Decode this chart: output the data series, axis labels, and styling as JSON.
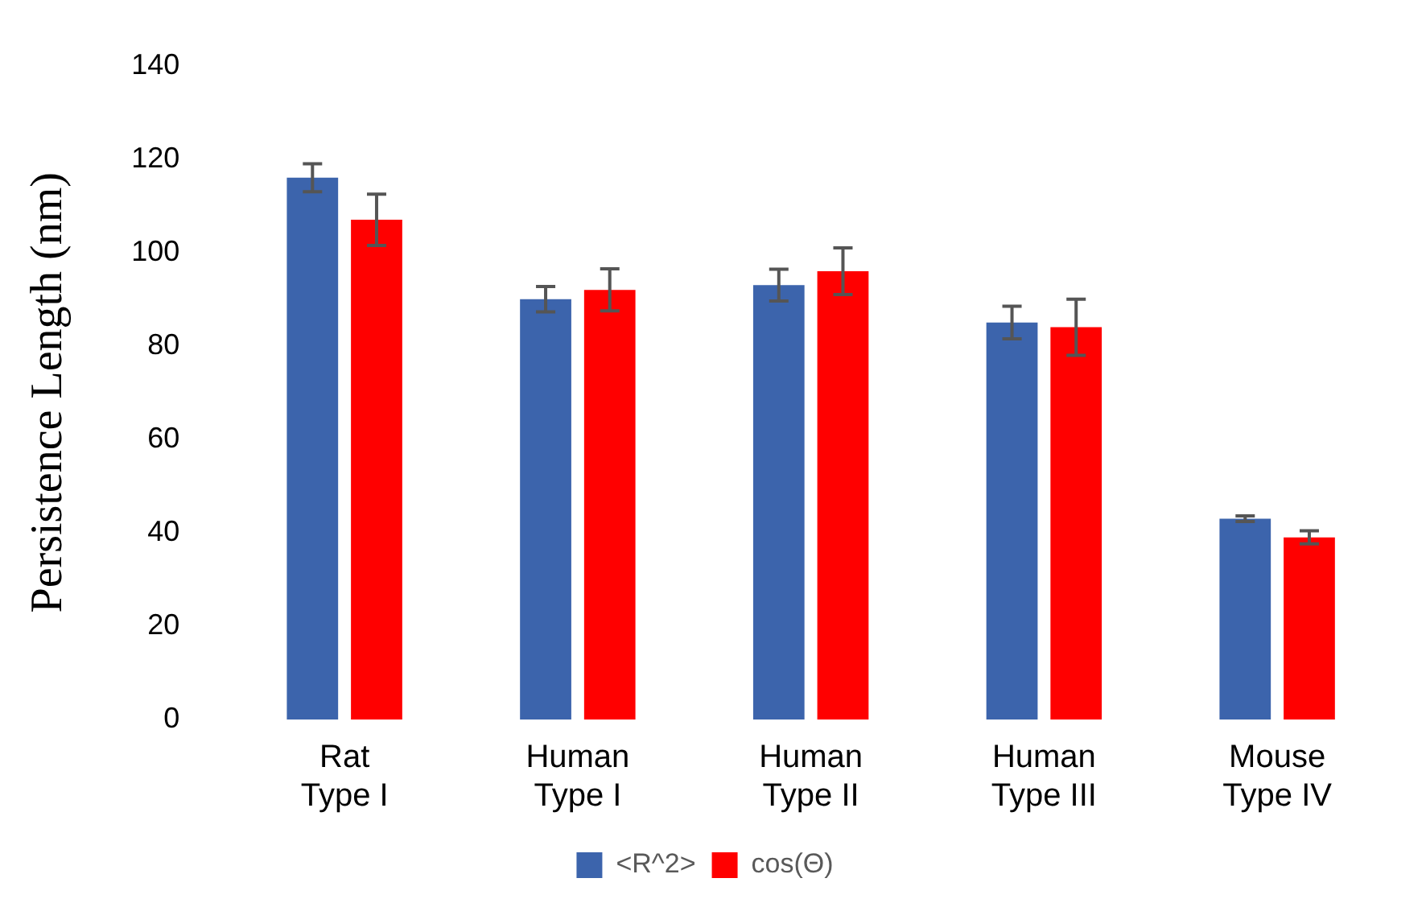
{
  "chart_data": {
    "type": "bar",
    "ylabel": "Persistence Length (nm)",
    "categories": [
      "Rat\nType I",
      "Human\nType I",
      "Human\nType II",
      "Human\nType III",
      "Mouse\nType IV"
    ],
    "series": [
      {
        "name": "<R^2>",
        "color": "#3c64ac",
        "values": [
          116,
          90,
          93,
          85,
          43
        ],
        "errors": [
          3,
          2.7,
          3.4,
          3.5,
          0.6
        ]
      },
      {
        "name": "cos(Θ)",
        "color": "#ff0000",
        "values": [
          107,
          92,
          96,
          84,
          39
        ],
        "errors": [
          5.5,
          4.5,
          5,
          6,
          1.4
        ]
      }
    ],
    "ylim": [
      0,
      140
    ],
    "yticks": [
      0,
      20,
      40,
      60,
      80,
      100,
      120,
      140
    ],
    "grid": false,
    "legend": "bottom"
  }
}
